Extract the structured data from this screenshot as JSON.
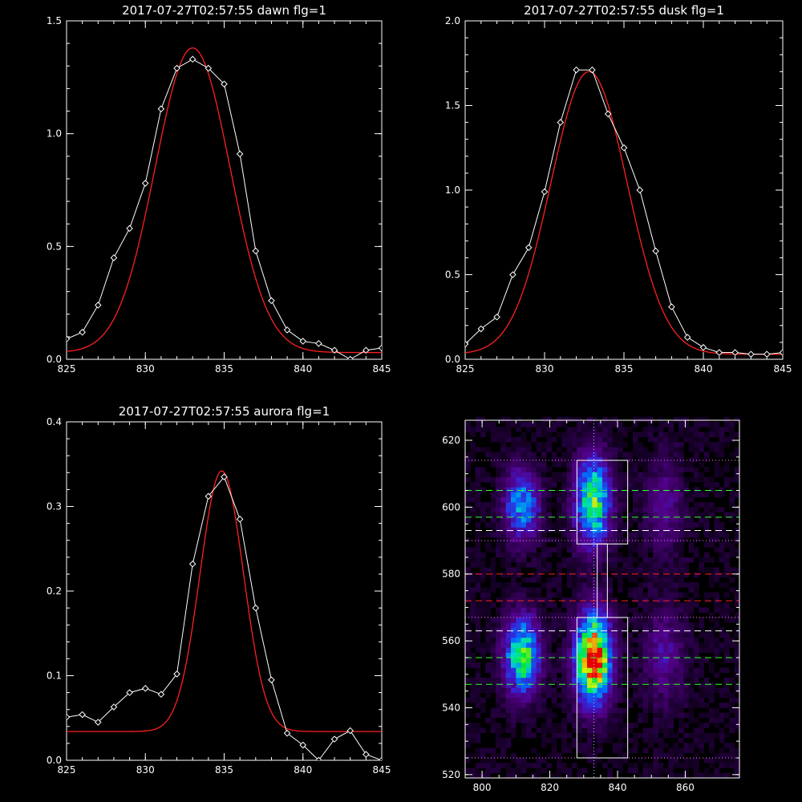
{
  "chart_data": [
    {
      "id": "dawn",
      "type": "line",
      "title": "2017-07-27T02:57:55 dawn flg=1",
      "xlim": [
        825,
        845
      ],
      "ylim": [
        0,
        1.5
      ],
      "xticks": [
        825,
        830,
        835,
        840,
        845
      ],
      "yticks": [
        0.0,
        0.5,
        1.0,
        1.5
      ],
      "ytick_labels": [
        "0.0",
        "0.5",
        "1.0",
        "1.5"
      ],
      "series": [
        {
          "style": "data",
          "color": "#ffffff",
          "marker": "diamond",
          "x": [
            825,
            826,
            827,
            828,
            829,
            830,
            831,
            832,
            833,
            834,
            835,
            836,
            837,
            838,
            839,
            840,
            841,
            842,
            843,
            844,
            845
          ],
          "y": [
            0.09,
            0.12,
            0.24,
            0.45,
            0.58,
            0.78,
            1.11,
            1.29,
            1.33,
            1.29,
            1.22,
            0.91,
            0.48,
            0.26,
            0.13,
            0.08,
            0.07,
            0.04,
            0.0,
            0.04,
            0.05
          ]
        },
        {
          "style": "fit",
          "color": "#ff2020",
          "fit": {
            "amplitude": 1.35,
            "center": 833.0,
            "sigma": 2.38,
            "offset": 0.03
          }
        }
      ]
    },
    {
      "id": "dusk",
      "type": "line",
      "title": "2017-07-27T02:57:55 dusk flg=1",
      "xlim": [
        825,
        845
      ],
      "ylim": [
        0,
        2.0
      ],
      "xticks": [
        825,
        830,
        835,
        840,
        845
      ],
      "yticks": [
        0.0,
        0.5,
        1.0,
        1.5,
        2.0
      ],
      "ytick_labels": [
        "0.0",
        "0.5",
        "1.0",
        "1.5",
        "2.0"
      ],
      "series": [
        {
          "style": "data",
          "color": "#ffffff",
          "marker": "diamond",
          "x": [
            825,
            826,
            827,
            828,
            829,
            830,
            831,
            832,
            833,
            834,
            835,
            836,
            837,
            838,
            839,
            840,
            841,
            842,
            843,
            844,
            845
          ],
          "y": [
            0.09,
            0.18,
            0.25,
            0.5,
            0.66,
            0.99,
            1.4,
            1.71,
            1.71,
            1.45,
            1.25,
            1.0,
            0.64,
            0.31,
            0.13,
            0.07,
            0.04,
            0.04,
            0.03,
            0.03,
            0.04
          ]
        },
        {
          "style": "fit",
          "color": "#ff2020",
          "fit": {
            "amplitude": 1.67,
            "center": 832.8,
            "sigma": 2.4,
            "offset": 0.03
          }
        }
      ]
    },
    {
      "id": "aurora",
      "type": "line",
      "title": "2017-07-27T02:57:55 aurora flg=1",
      "xlim": [
        825,
        845
      ],
      "ylim": [
        0,
        0.4
      ],
      "xticks": [
        825,
        830,
        835,
        840,
        845
      ],
      "yticks": [
        0.0,
        0.1,
        0.2,
        0.3,
        0.4
      ],
      "ytick_labels": [
        "0.0",
        "0.1",
        "0.2",
        "0.3",
        "0.4"
      ],
      "series": [
        {
          "style": "data",
          "color": "#ffffff",
          "marker": "diamond",
          "x": [
            825,
            826,
            827,
            828,
            829,
            830,
            831,
            832,
            833,
            834,
            835,
            836,
            837,
            838,
            839,
            840,
            841,
            842,
            843,
            844,
            845
          ],
          "y": [
            0.051,
            0.054,
            0.045,
            0.063,
            0.08,
            0.085,
            0.078,
            0.102,
            0.232,
            0.312,
            0.335,
            0.285,
            0.18,
            0.095,
            0.032,
            0.018,
            0.0,
            0.025,
            0.035,
            0.007,
            0.0
          ]
        },
        {
          "style": "fit",
          "color": "#ff2020",
          "fit": {
            "amplitude": 0.308,
            "center": 834.85,
            "sigma": 1.38,
            "offset": 0.034
          }
        }
      ]
    },
    {
      "id": "spectrogram",
      "type": "heatmap",
      "title": "",
      "xlim": [
        795,
        876
      ],
      "ylim": [
        519,
        626
      ],
      "xticks": [
        800,
        820,
        840,
        860
      ],
      "yticks": [
        520,
        540,
        560,
        580,
        600,
        620
      ],
      "blobs": [
        {
          "x": 832,
          "y": 554,
          "sx": 3.5,
          "sy": 9,
          "amp": 1.0
        },
        {
          "x": 811,
          "y": 555,
          "sx": 3.5,
          "sy": 8,
          "amp": 0.62
        },
        {
          "x": 832,
          "y": 601,
          "sx": 3.5,
          "sy": 9,
          "amp": 0.65
        },
        {
          "x": 811,
          "y": 600,
          "sx": 3.5,
          "sy": 7,
          "amp": 0.45
        },
        {
          "x": 853,
          "y": 555,
          "sx": 4,
          "sy": 10,
          "amp": 0.18
        },
        {
          "x": 853,
          "y": 600,
          "sx": 4,
          "sy": 10,
          "amp": 0.16
        }
      ],
      "boxes": [
        {
          "x0": 828,
          "x1": 843,
          "y0": 589,
          "y1": 614
        },
        {
          "x0": 828,
          "x1": 843,
          "y0": 525,
          "y1": 567
        },
        {
          "x0": 834,
          "x1": 837,
          "y0": 567,
          "y1": 589
        }
      ],
      "vline": {
        "x": 833,
        "style": "dotted",
        "color": "#c0c0ff"
      },
      "hlines": [
        {
          "y": 614,
          "style": "dotted",
          "color": "#ff80ff"
        },
        {
          "y": 605,
          "style": "dashed",
          "color": "#33ff33"
        },
        {
          "y": 597,
          "style": "dashed",
          "color": "#33ff33"
        },
        {
          "y": 593,
          "style": "dashed",
          "color": "#ffffff"
        },
        {
          "y": 590,
          "style": "dotted",
          "color": "#ff80ff"
        },
        {
          "y": 580,
          "style": "dashed",
          "color": "#ff2020"
        },
        {
          "y": 572,
          "style": "dashed",
          "color": "#ff2020"
        },
        {
          "y": 567,
          "style": "dotted",
          "color": "#ff80ff"
        },
        {
          "y": 563,
          "style": "dashed",
          "color": "#ffffff"
        },
        {
          "y": 555,
          "style": "dashed",
          "color": "#33ff33"
        },
        {
          "y": 547,
          "style": "dashed",
          "color": "#33ff33"
        },
        {
          "y": 525,
          "style": "dotted",
          "color": "#ff80ff"
        }
      ]
    }
  ]
}
